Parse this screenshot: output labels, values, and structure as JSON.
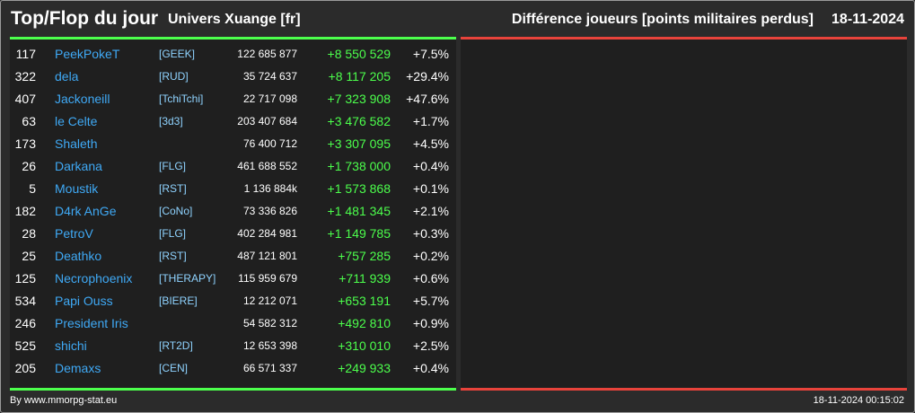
{
  "header": {
    "title": "Top/Flop du jour",
    "universe": "Univers Xuange [fr]",
    "metric": "Différence joueurs [points militaires perdus]",
    "date": "18-11-2024"
  },
  "colors": {
    "top_bar": "#4cff4c",
    "flop_bar": "#e8433b",
    "name": "#3fa9f5",
    "alliance": "#8fd3ff",
    "positive_diff": "#4cff4c"
  },
  "top": [
    {
      "rank": "117",
      "name": "PeekPokeT",
      "alliance": "[GEEK]",
      "points": "122 685 877",
      "diff": "+8 550 529",
      "pct": "+7.5%"
    },
    {
      "rank": "322",
      "name": "dela",
      "alliance": "[RUD]",
      "points": "35 724 637",
      "diff": "+8 117 205",
      "pct": "+29.4%"
    },
    {
      "rank": "407",
      "name": "Jackoneill",
      "alliance": "[TchiTchi]",
      "points": "22 717 098",
      "diff": "+7 323 908",
      "pct": "+47.6%"
    },
    {
      "rank": "63",
      "name": "le Celte",
      "alliance": "[3d3]",
      "points": "203 407 684",
      "diff": "+3 476 582",
      "pct": "+1.7%"
    },
    {
      "rank": "173",
      "name": "Shaleth",
      "alliance": "",
      "points": "76 400 712",
      "diff": "+3 307 095",
      "pct": "+4.5%"
    },
    {
      "rank": "26",
      "name": "Darkana",
      "alliance": "[FLG]",
      "points": "461 688 552",
      "diff": "+1 738 000",
      "pct": "+0.4%"
    },
    {
      "rank": "5",
      "name": "Moustik",
      "alliance": "[RST]",
      "points": "1 136 884k",
      "diff": "+1 573 868",
      "pct": "+0.1%"
    },
    {
      "rank": "182",
      "name": "D4rk AnGe",
      "alliance": "[CoNo]",
      "points": "73 336 826",
      "diff": "+1 481 345",
      "pct": "+2.1%"
    },
    {
      "rank": "28",
      "name": "PetroV",
      "alliance": "[FLG]",
      "points": "402 284 981",
      "diff": "+1 149 785",
      "pct": "+0.3%"
    },
    {
      "rank": "25",
      "name": "Deathko",
      "alliance": "[RST]",
      "points": "487 121 801",
      "diff": "+757 285",
      "pct": "+0.2%"
    },
    {
      "rank": "125",
      "name": "Necrophoenix",
      "alliance": "[THERAPY]",
      "points": "115 959 679",
      "diff": "+711 939",
      "pct": "+0.6%"
    },
    {
      "rank": "534",
      "name": "Papi Ouss",
      "alliance": "[BIERE]",
      "points": "12 212 071",
      "diff": "+653 191",
      "pct": "+5.7%"
    },
    {
      "rank": "246",
      "name": "President Iris",
      "alliance": "",
      "points": "54 582 312",
      "diff": "+492 810",
      "pct": "+0.9%"
    },
    {
      "rank": "525",
      "name": "shichi",
      "alliance": "[RT2D]",
      "points": "12 653 398",
      "diff": "+310 010",
      "pct": "+2.5%"
    },
    {
      "rank": "205",
      "name": "Demaxs",
      "alliance": "[CEN]",
      "points": "66 571 337",
      "diff": "+249 933",
      "pct": "+0.4%"
    }
  ],
  "flop": [],
  "footer": {
    "source": "By www.mmorpg-stat.eu",
    "generated": "18-11-2024 00:15:02"
  }
}
